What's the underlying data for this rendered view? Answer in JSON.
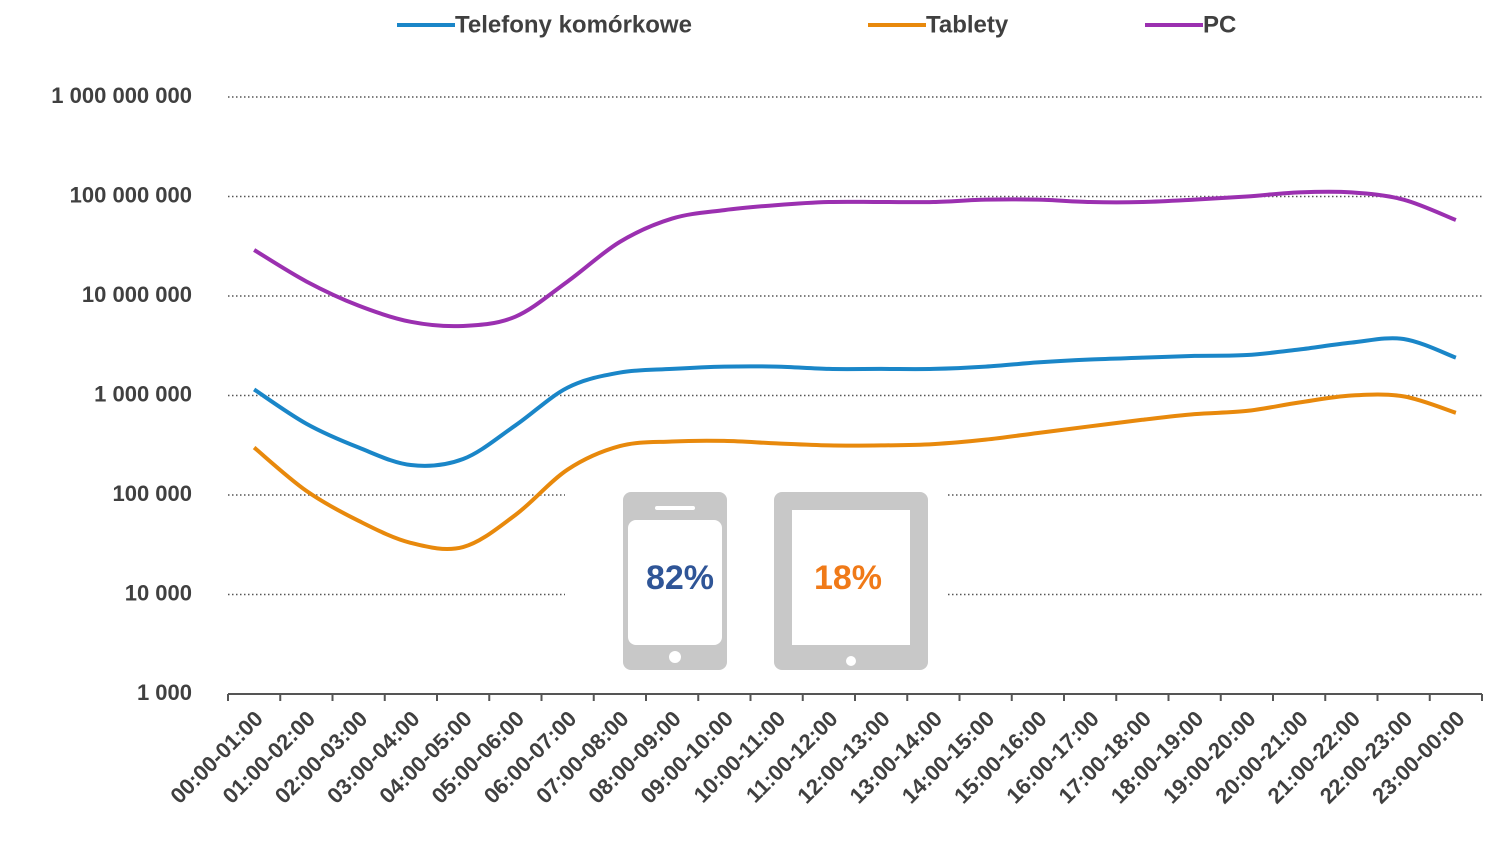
{
  "chart_data": {
    "type": "line",
    "log": true,
    "grid": true,
    "legend": "top",
    "categories": [
      "00:00-01:00",
      "01:00-02:00",
      "02:00-03:00",
      "03:00-04:00",
      "04:00-05:00",
      "05:00-06:00",
      "06:00-07:00",
      "07:00-08:00",
      "08:00-09:00",
      "09:00-10:00",
      "10:00-11:00",
      "11:00-12:00",
      "12:00-13:00",
      "13:00-14:00",
      "14:00-15:00",
      "15:00-16:00",
      "16:00-17:00",
      "17:00-18:00",
      "18:00-19:00",
      "19:00-20:00",
      "20:00-21:00",
      "21:00-22:00",
      "22:00-23:00",
      "23:00-00:00"
    ],
    "series": [
      {
        "name": "Telefony komórkowe",
        "color": "#1a86c8",
        "values": [
          1150000,
          520000,
          300000,
          200000,
          230000,
          500000,
          1200000,
          1700000,
          1850000,
          1950000,
          1950000,
          1850000,
          1850000,
          1850000,
          1950000,
          2150000,
          2300000,
          2400000,
          2500000,
          2550000,
          2900000,
          3400000,
          3700000,
          2400000
        ]
      },
      {
        "name": "Tablety",
        "color": "#e8890c",
        "values": [
          300000,
          110000,
          55000,
          33000,
          30000,
          63000,
          180000,
          310000,
          345000,
          350000,
          330000,
          315000,
          315000,
          325000,
          360000,
          420000,
          490000,
          570000,
          650000,
          700000,
          850000,
          1000000,
          980000,
          670000
        ]
      },
      {
        "name": "PC",
        "color": "#9b30b0",
        "values": [
          29000000,
          14000000,
          8000000,
          5500000,
          5000000,
          6200000,
          14000000,
          35000000,
          60000000,
          73000000,
          82000000,
          88000000,
          88000000,
          88000000,
          93000000,
          93000000,
          88000000,
          88000000,
          93000000,
          100000000,
          110000000,
          110000000,
          93000000,
          58000000
        ]
      }
    ],
    "ylim": [
      1000,
      1000000000
    ],
    "yticks": [
      {
        "value": 1000,
        "label": "1 000"
      },
      {
        "value": 10000,
        "label": "10 000"
      },
      {
        "value": 100000,
        "label": "100 000"
      },
      {
        "value": 1000000,
        "label": "1 000 000"
      },
      {
        "value": 10000000,
        "label": "10 000 000"
      },
      {
        "value": 100000000,
        "label": "100 000 000"
      },
      {
        "value": 1000000000,
        "label": "1 000 000 000"
      }
    ],
    "annotations": [
      {
        "text": "82%",
        "color": "#2f5597"
      },
      {
        "text": "18%",
        "color": "#f07a18"
      }
    ]
  }
}
